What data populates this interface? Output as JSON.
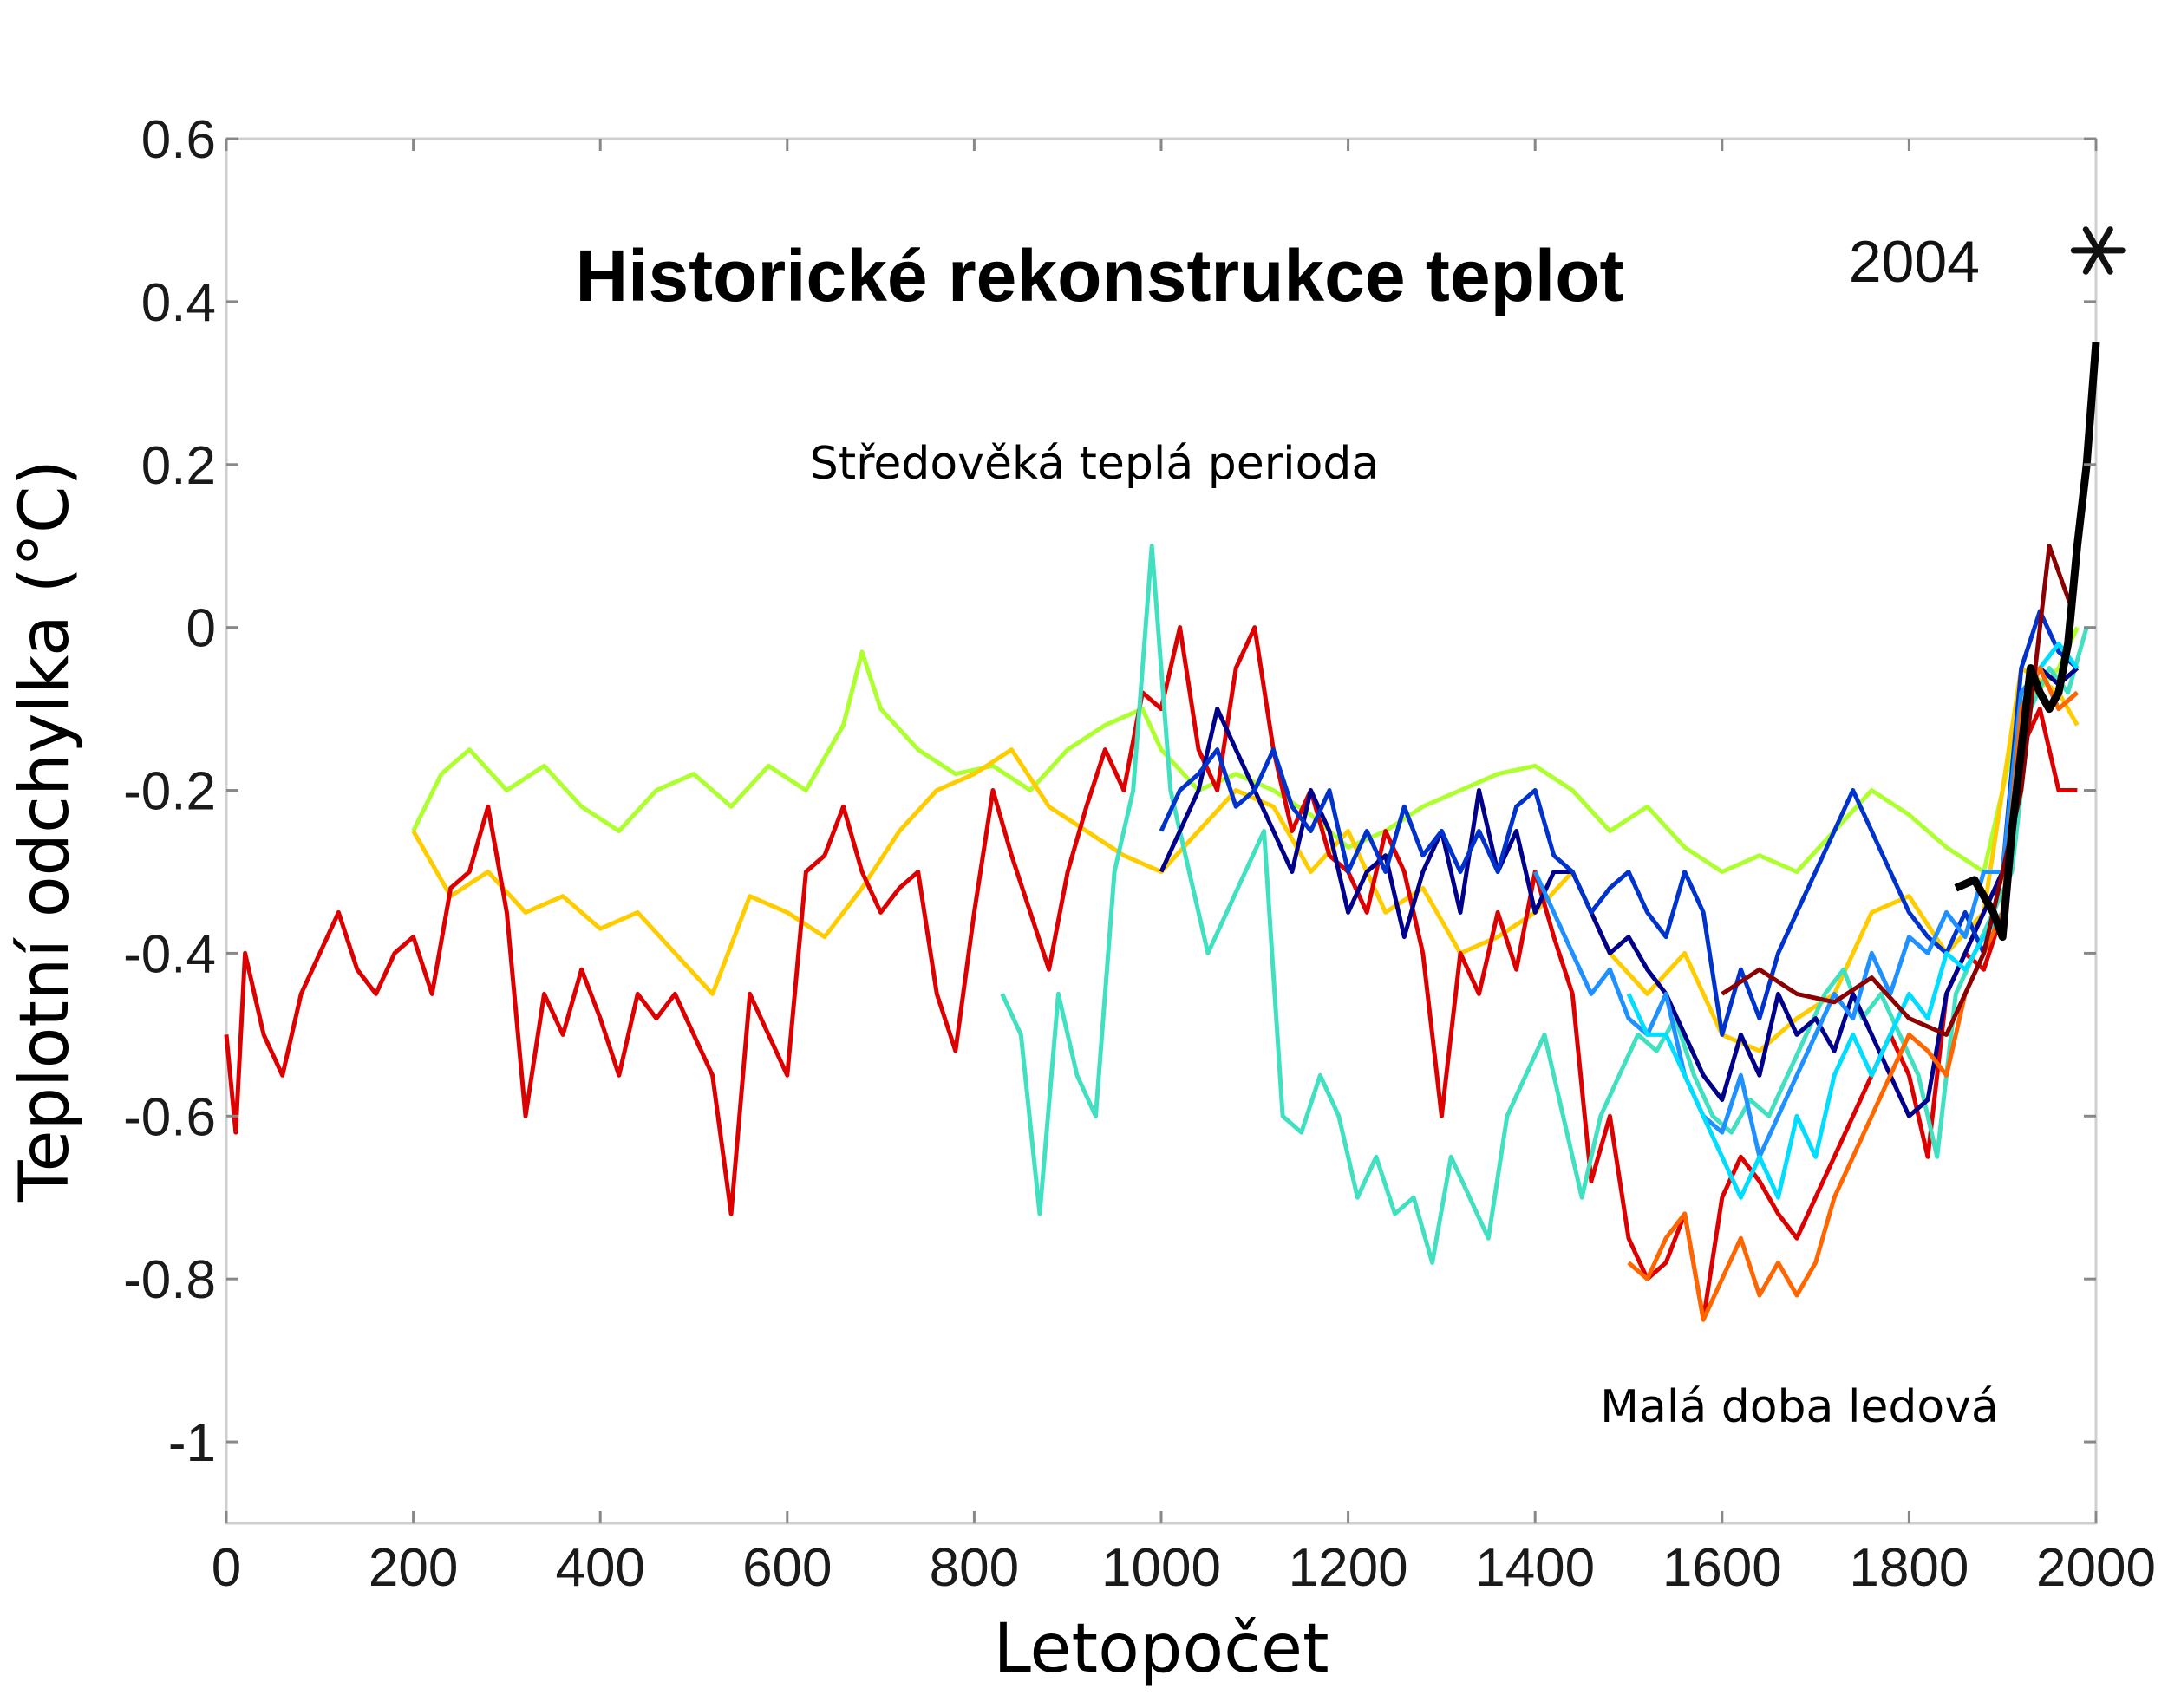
{
  "chart_data": {
    "type": "line",
    "title": "Historické rekonstrukce teplot",
    "xlabel": "Letopočet",
    "ylabel": "Teplotní odchylka  (°C)",
    "xlim": [
      0,
      2000
    ],
    "ylim": [
      -1.1,
      0.6
    ],
    "x_ticks": [
      "0",
      "200",
      "400",
      "600",
      "800",
      "1000",
      "1200",
      "1400",
      "1600",
      "1800",
      "2000"
    ],
    "y_ticks": [
      "0.6",
      "0.4",
      "0.2",
      "0",
      "-0.2",
      "-0.4",
      "-0.6",
      "-0.8",
      "-1"
    ],
    "grid": false,
    "annotations": {
      "medieval": "Středověká teplá perioda",
      "little_ice_age": "Malá doba ledová",
      "marker_2004": "2004"
    },
    "marker_2004": {
      "x": 2004,
      "y": 0.45,
      "symbol": "*"
    },
    "series": [
      {
        "color": "#ADFF2F",
        "x": [
          200,
          230,
          260,
          300,
          340,
          380,
          420,
          460,
          500,
          540,
          580,
          620,
          660,
          680,
          700,
          740,
          780,
          820,
          860,
          900,
          940,
          980,
          1000,
          1040,
          1080,
          1120,
          1160,
          1200,
          1240,
          1280,
          1320,
          1360,
          1400,
          1440,
          1480,
          1520,
          1560,
          1600,
          1640,
          1680,
          1720,
          1760,
          1800,
          1840,
          1880,
          1920,
          1960,
          1980
        ],
        "y": [
          -0.25,
          -0.18,
          -0.15,
          -0.2,
          -0.17,
          -0.22,
          -0.25,
          -0.2,
          -0.18,
          -0.22,
          -0.17,
          -0.2,
          -0.12,
          -0.03,
          -0.1,
          -0.15,
          -0.18,
          -0.17,
          -0.2,
          -0.15,
          -0.12,
          -0.1,
          -0.15,
          -0.2,
          -0.18,
          -0.2,
          -0.23,
          -0.27,
          -0.25,
          -0.22,
          -0.2,
          -0.18,
          -0.17,
          -0.2,
          -0.25,
          -0.22,
          -0.27,
          -0.3,
          -0.28,
          -0.3,
          -0.25,
          -0.2,
          -0.23,
          -0.27,
          -0.3,
          -0.1,
          -0.05,
          0.0
        ]
      },
      {
        "color": "#FFCC00",
        "x": [
          200,
          240,
          280,
          320,
          360,
          400,
          440,
          480,
          520,
          560,
          600,
          640,
          680,
          720,
          760,
          800,
          840,
          880,
          920,
          960,
          1000,
          1040,
          1080,
          1120,
          1160,
          1200,
          1240,
          1280,
          1320,
          1360,
          1400,
          1440,
          1480,
          1520,
          1560,
          1600,
          1640,
          1680,
          1720,
          1760,
          1800,
          1840,
          1880,
          1920,
          1960,
          1980
        ],
        "y": [
          -0.25,
          -0.33,
          -0.3,
          -0.35,
          -0.33,
          -0.37,
          -0.35,
          -0.4,
          -0.45,
          -0.33,
          -0.35,
          -0.38,
          -0.32,
          -0.25,
          -0.2,
          -0.18,
          -0.15,
          -0.22,
          -0.25,
          -0.28,
          -0.3,
          -0.25,
          -0.2,
          -0.22,
          -0.3,
          -0.25,
          -0.35,
          -0.32,
          -0.4,
          -0.38,
          -0.35,
          -0.3,
          -0.4,
          -0.45,
          -0.4,
          -0.5,
          -0.52,
          -0.48,
          -0.45,
          -0.35,
          -0.33,
          -0.4,
          -0.35,
          -0.05,
          -0.08,
          -0.12
        ]
      },
      {
        "color": "#DD0000",
        "x": [
          0,
          10,
          20,
          40,
          60,
          80,
          100,
          120,
          140,
          160,
          180,
          200,
          220,
          240,
          260,
          280,
          300,
          320,
          340,
          360,
          380,
          400,
          420,
          440,
          460,
          480,
          500,
          520,
          540,
          560,
          580,
          600,
          620,
          640,
          660,
          680,
          700,
          720,
          740,
          760,
          780,
          800,
          820,
          840,
          860,
          880,
          900,
          920,
          940,
          960,
          980,
          1000,
          1020,
          1040,
          1060,
          1080,
          1100,
          1120,
          1140,
          1160,
          1180,
          1200,
          1220,
          1240,
          1260,
          1280,
          1300,
          1320,
          1340,
          1360,
          1380,
          1400,
          1420,
          1440,
          1460,
          1480,
          1500,
          1520,
          1540,
          1560,
          1580,
          1600,
          1620,
          1640,
          1660,
          1680,
          1700,
          1720,
          1740,
          1760,
          1780,
          1800,
          1820,
          1840,
          1860,
          1880,
          1900,
          1920,
          1940,
          1960,
          1980
        ],
        "y": [
          -0.5,
          -0.62,
          -0.4,
          -0.5,
          -0.55,
          -0.45,
          -0.4,
          -0.35,
          -0.42,
          -0.45,
          -0.4,
          -0.38,
          -0.45,
          -0.32,
          -0.3,
          -0.22,
          -0.35,
          -0.6,
          -0.45,
          -0.5,
          -0.42,
          -0.48,
          -0.55,
          -0.45,
          -0.48,
          -0.45,
          -0.5,
          -0.55,
          -0.72,
          -0.45,
          -0.5,
          -0.55,
          -0.3,
          -0.28,
          -0.22,
          -0.3,
          -0.35,
          -0.32,
          -0.3,
          -0.45,
          -0.52,
          -0.35,
          -0.2,
          -0.28,
          -0.35,
          -0.42,
          -0.3,
          -0.22,
          -0.15,
          -0.2,
          -0.08,
          -0.1,
          0.0,
          -0.15,
          -0.2,
          -0.05,
          0.0,
          -0.15,
          -0.25,
          -0.2,
          -0.28,
          -0.3,
          -0.35,
          -0.25,
          -0.3,
          -0.4,
          -0.6,
          -0.4,
          -0.45,
          -0.35,
          -0.42,
          -0.3,
          -0.38,
          -0.45,
          -0.68,
          -0.6,
          -0.75,
          -0.8,
          -0.78,
          -0.72,
          -0.85,
          -0.7,
          -0.65,
          -0.68,
          -0.72,
          -0.75,
          -0.7,
          -0.65,
          -0.6,
          -0.55,
          -0.5,
          -0.55,
          -0.65,
          -0.45,
          -0.4,
          -0.42,
          -0.35,
          -0.15,
          -0.1,
          -0.2,
          -0.2
        ]
      },
      {
        "color": "#40E0C0",
        "x": [
          830,
          850,
          870,
          890,
          910,
          930,
          950,
          970,
          990,
          1010,
          1030,
          1050,
          1070,
          1090,
          1110,
          1130,
          1150,
          1170,
          1190,
          1210,
          1230,
          1250,
          1270,
          1290,
          1310,
          1330,
          1350,
          1370,
          1390,
          1410,
          1430,
          1450,
          1470,
          1490,
          1510,
          1530,
          1550,
          1570,
          1590,
          1610,
          1630,
          1650,
          1670,
          1690,
          1710,
          1730,
          1750,
          1770,
          1790,
          1810,
          1830,
          1850,
          1870,
          1890,
          1910,
          1930,
          1950,
          1970,
          1990
        ],
        "y": [
          -0.45,
          -0.5,
          -0.72,
          -0.45,
          -0.55,
          -0.6,
          -0.3,
          -0.2,
          0.1,
          -0.2,
          -0.3,
          -0.4,
          -0.35,
          -0.3,
          -0.25,
          -0.6,
          -0.62,
          -0.55,
          -0.6,
          -0.7,
          -0.65,
          -0.72,
          -0.7,
          -0.78,
          -0.65,
          -0.7,
          -0.75,
          -0.6,
          -0.55,
          -0.5,
          -0.6,
          -0.7,
          -0.6,
          -0.55,
          -0.5,
          -0.52,
          -0.48,
          -0.55,
          -0.6,
          -0.62,
          -0.58,
          -0.6,
          -0.55,
          -0.5,
          -0.45,
          -0.42,
          -0.48,
          -0.45,
          -0.5,
          -0.55,
          -0.65,
          -0.45,
          -0.4,
          -0.35,
          -0.3,
          -0.1,
          -0.05,
          -0.08,
          0.0
        ]
      },
      {
        "color": "#00008B",
        "x": [
          1000,
          1020,
          1040,
          1060,
          1080,
          1100,
          1120,
          1140,
          1160,
          1180,
          1200,
          1220,
          1240,
          1260,
          1280,
          1300,
          1320,
          1340,
          1360,
          1380,
          1400,
          1420,
          1440,
          1460,
          1480,
          1500,
          1520,
          1540,
          1560,
          1580,
          1600,
          1620,
          1640,
          1660,
          1680,
          1700,
          1720,
          1740,
          1760,
          1780,
          1800,
          1820,
          1840,
          1860,
          1880,
          1900,
          1920,
          1940,
          1960,
          1980
        ],
        "y": [
          -0.3,
          -0.25,
          -0.2,
          -0.1,
          -0.15,
          -0.2,
          -0.25,
          -0.3,
          -0.2,
          -0.25,
          -0.35,
          -0.3,
          -0.28,
          -0.38,
          -0.3,
          -0.25,
          -0.35,
          -0.2,
          -0.3,
          -0.25,
          -0.35,
          -0.3,
          -0.3,
          -0.35,
          -0.4,
          -0.38,
          -0.42,
          -0.45,
          -0.5,
          -0.55,
          -0.58,
          -0.5,
          -0.55,
          -0.45,
          -0.5,
          -0.48,
          -0.52,
          -0.45,
          -0.5,
          -0.55,
          -0.6,
          -0.58,
          -0.45,
          -0.4,
          -0.35,
          -0.3,
          -0.1,
          -0.05,
          -0.07,
          -0.05
        ]
      },
      {
        "color": "#0033CC",
        "x": [
          1000,
          1020,
          1040,
          1060,
          1080,
          1100,
          1120,
          1140,
          1160,
          1180,
          1200,
          1220,
          1240,
          1260,
          1280,
          1300,
          1320,
          1340,
          1360,
          1380,
          1400,
          1420,
          1440,
          1460,
          1480,
          1500,
          1520,
          1540,
          1560,
          1580,
          1600,
          1620,
          1640,
          1660,
          1680,
          1700,
          1720,
          1740,
          1760,
          1780,
          1800,
          1820,
          1840,
          1860,
          1880,
          1900,
          1920,
          1940,
          1960,
          1980
        ],
        "y": [
          -0.25,
          -0.2,
          -0.18,
          -0.15,
          -0.22,
          -0.2,
          -0.15,
          -0.22,
          -0.25,
          -0.2,
          -0.3,
          -0.25,
          -0.3,
          -0.22,
          -0.28,
          -0.25,
          -0.3,
          -0.25,
          -0.3,
          -0.22,
          -0.2,
          -0.28,
          -0.3,
          -0.35,
          -0.32,
          -0.3,
          -0.35,
          -0.38,
          -0.3,
          -0.35,
          -0.5,
          -0.42,
          -0.48,
          -0.4,
          -0.35,
          -0.3,
          -0.25,
          -0.2,
          -0.25,
          -0.3,
          -0.35,
          -0.38,
          -0.4,
          -0.35,
          -0.4,
          -0.3,
          -0.05,
          0.02,
          -0.03,
          -0.05
        ]
      },
      {
        "color": "#1E90FF",
        "x": [
          1400,
          1420,
          1440,
          1460,
          1480,
          1500,
          1520,
          1540,
          1560,
          1580,
          1600,
          1620,
          1640,
          1660,
          1680,
          1700,
          1720,
          1740,
          1760,
          1780,
          1800,
          1820,
          1840,
          1860,
          1880,
          1900,
          1920,
          1940,
          1960,
          1980
        ],
        "y": [
          -0.3,
          -0.35,
          -0.4,
          -0.45,
          -0.42,
          -0.48,
          -0.5,
          -0.45,
          -0.55,
          -0.6,
          -0.62,
          -0.55,
          -0.65,
          -0.6,
          -0.55,
          -0.5,
          -0.45,
          -0.48,
          -0.4,
          -0.45,
          -0.38,
          -0.4,
          -0.35,
          -0.38,
          -0.3,
          -0.3,
          -0.08,
          -0.05,
          -0.1,
          -0.08
        ]
      },
      {
        "color": "#00DDFF",
        "x": [
          1500,
          1520,
          1540,
          1560,
          1580,
          1600,
          1620,
          1640,
          1660,
          1680,
          1700,
          1720,
          1740,
          1760,
          1780,
          1800,
          1820,
          1840,
          1860,
          1880,
          1900,
          1920,
          1940,
          1960,
          1980
        ],
        "y": [
          -0.45,
          -0.5,
          -0.5,
          -0.55,
          -0.6,
          -0.65,
          -0.7,
          -0.65,
          -0.7,
          -0.6,
          -0.65,
          -0.55,
          -0.5,
          -0.55,
          -0.5,
          -0.45,
          -0.48,
          -0.4,
          -0.42,
          -0.38,
          -0.35,
          -0.1,
          -0.05,
          -0.02,
          -0.05
        ]
      },
      {
        "color": "#FF6600",
        "x": [
          1500,
          1520,
          1540,
          1560,
          1580,
          1600,
          1620,
          1640,
          1660,
          1680,
          1700,
          1720,
          1740,
          1760,
          1780,
          1800,
          1820,
          1840,
          1860,
          1880,
          1900,
          1920,
          1940,
          1960,
          1980
        ],
        "y": [
          -0.78,
          -0.8,
          -0.75,
          -0.72,
          -0.85,
          -0.8,
          -0.75,
          -0.82,
          -0.78,
          -0.82,
          -0.78,
          -0.7,
          -0.65,
          -0.6,
          -0.55,
          -0.5,
          -0.52,
          -0.55,
          -0.45,
          -0.4,
          -0.35,
          -0.1,
          -0.05,
          -0.1,
          -0.08
        ]
      },
      {
        "color": "#8B0000",
        "x": [
          1600,
          1640,
          1680,
          1720,
          1760,
          1800,
          1840,
          1880,
          1920,
          1950,
          1975
        ],
        "y": [
          -0.45,
          -0.42,
          -0.45,
          -0.46,
          -0.43,
          -0.48,
          -0.5,
          -0.4,
          -0.2,
          0.1,
          0.02
        ]
      },
      {
        "color": "#000000",
        "width": 9,
        "x": [
          1850,
          1870,
          1890,
          1900,
          1910,
          1920,
          1930,
          1940,
          1950,
          1960,
          1970,
          1980,
          1990,
          2000
        ],
        "y": [
          -0.32,
          -0.31,
          -0.35,
          -0.38,
          -0.25,
          -0.15,
          -0.05,
          -0.08,
          -0.1,
          -0.08,
          -0.02,
          0.1,
          0.2,
          0.35
        ]
      }
    ]
  }
}
